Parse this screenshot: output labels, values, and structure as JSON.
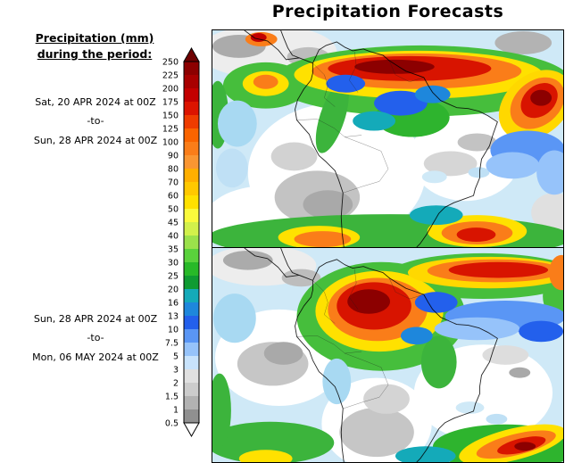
{
  "title": "Precipitation Forecasts",
  "legend": {
    "title_line1": "Precipitation (mm)",
    "title_line2": "during the period:"
  },
  "periods": [
    {
      "start": "Sat, 20 APR 2024 at 00Z",
      "separator": "-to-",
      "end": "Sun, 28 APR 2024 at 00Z"
    },
    {
      "start": "Sun, 28 APR 2024 at 00Z",
      "separator": "-to-",
      "end": "Mon, 06 MAY 2024 at 00Z"
    }
  ],
  "chart_data": {
    "type": "heatmap",
    "title": "Precipitation Forecasts",
    "variable": "Precipitation (mm)",
    "region": "South America",
    "panels": [
      {
        "period_start": "Sat, 20 APR 2024 at 00Z",
        "period_end": "Sun, 28 APR 2024 at 00Z"
      },
      {
        "period_start": "Sun, 28 APR 2024 at 00Z",
        "period_end": "Mon, 06 MAY 2024 at 00Z"
      }
    ],
    "colorbar": {
      "orientation": "vertical",
      "units": "mm",
      "tick_labels_top_to_bottom": [
        "250",
        "225",
        "200",
        "175",
        "150",
        "125",
        "100",
        "90",
        "80",
        "70",
        "60",
        "50",
        "45",
        "40",
        "35",
        "30",
        "25",
        "20",
        "16",
        "13",
        "10",
        "7.5",
        "5",
        "3",
        "2",
        "1.5",
        "1",
        "0.5"
      ],
      "arrow_top_color": "#6e0000",
      "arrow_bottom_color": "#ffffff",
      "segment_colors_top_to_bottom": [
        "#8c0000",
        "#a80000",
        "#c30000",
        "#dc1400",
        "#ef3c00",
        "#fa6400",
        "#fa7d19",
        "#fa9632",
        "#ffaf00",
        "#ffc800",
        "#ffe100",
        "#fafa3c",
        "#d2f04b",
        "#9be14b",
        "#5ad23c",
        "#28b928",
        "#0f9b32",
        "#14aab9",
        "#1e87dc",
        "#2360ec",
        "#5a96f5",
        "#96c3fa",
        "#c8e3fc",
        "#e0e0e0",
        "#cccccc",
        "#b2b2b2",
        "#909090"
      ]
    }
  }
}
